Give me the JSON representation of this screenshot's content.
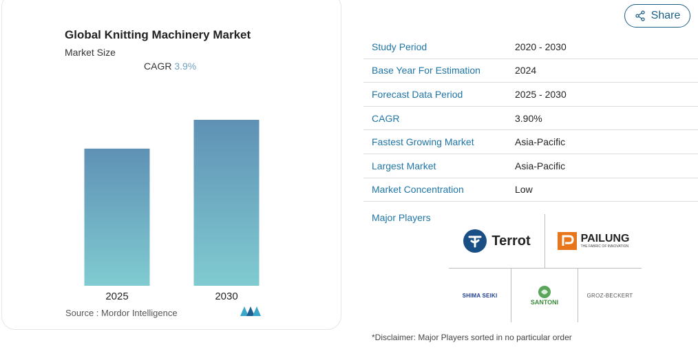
{
  "card": {
    "title": "Global Knitting Machinery Market",
    "subtitle": "Market Size",
    "cagr_label": "CAGR",
    "cagr_value": "3.9%",
    "source": "Source :  Mordor Intelligence"
  },
  "chart_data": {
    "type": "bar",
    "categories": [
      "2025",
      "2030"
    ],
    "values": [
      1.0,
      1.21
    ],
    "title": "Global Knitting Machinery Market",
    "ylabel": "",
    "xlabel": "",
    "colors": {
      "top": "#5f91b5",
      "bottom": "#7fcad0"
    }
  },
  "share": {
    "label": "Share",
    "icon": "share-icon"
  },
  "table": [
    {
      "key": "Study Period",
      "value": "2020 - 2030"
    },
    {
      "key": "Base Year For Estimation",
      "value": "2024"
    },
    {
      "key": "Forecast Data Period",
      "value": "2025 - 2030"
    },
    {
      "key": "CAGR",
      "value": "3.90%"
    },
    {
      "key": "Fastest Growing Market",
      "value": "Asia-Pacific"
    },
    {
      "key": "Largest Market",
      "value": "Asia-Pacific"
    },
    {
      "key": "Market Concentration",
      "value": "Low"
    }
  ],
  "major_players_label": "Major Players",
  "players": {
    "terrot": "Terrot",
    "pailung": "PAILUNG",
    "pailung_tagline": "THE FABRIC OF INNOVATION",
    "shima": "SHIMA SEIKI",
    "santoni": "SANTONI",
    "groz": "GROZ-BECKERT"
  },
  "disclaimer": "*Disclaimer: Major Players sorted in no particular order",
  "accent": "#1e75a6"
}
